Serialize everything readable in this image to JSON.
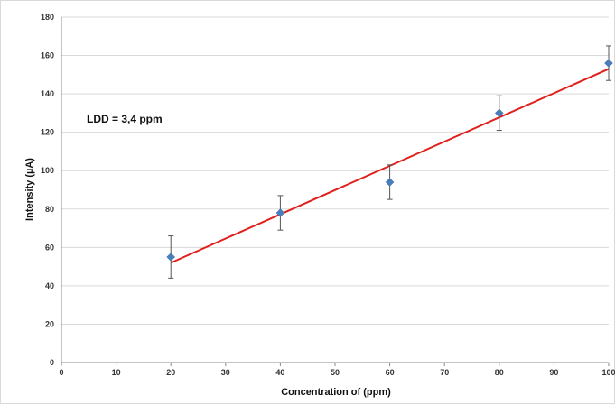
{
  "chart_data": {
    "type": "scatter",
    "xlabel": "Concentration  of (ppm)",
    "ylabel": "Intensity (µA)",
    "xlim": [
      0,
      100
    ],
    "ylim": [
      0,
      180
    ],
    "x_ticks": [
      0,
      10,
      20,
      30,
      40,
      50,
      60,
      70,
      80,
      90,
      100
    ],
    "y_ticks": [
      0,
      20,
      40,
      60,
      80,
      100,
      120,
      140,
      160,
      180
    ],
    "grid": "horizontal",
    "legend": "none",
    "annotation": "LDD = 3,4 ppm",
    "series": [
      {
        "marker": "diamond",
        "color": "#4a7ebb",
        "x": [
          20,
          40,
          60,
          80,
          100
        ],
        "y": [
          55,
          78,
          94,
          130,
          156
        ],
        "error": [
          11,
          9,
          9,
          9,
          9
        ]
      }
    ],
    "trendline": {
      "color": "#e0201c",
      "x": [
        20,
        100
      ],
      "y": [
        52,
        153
      ]
    }
  }
}
